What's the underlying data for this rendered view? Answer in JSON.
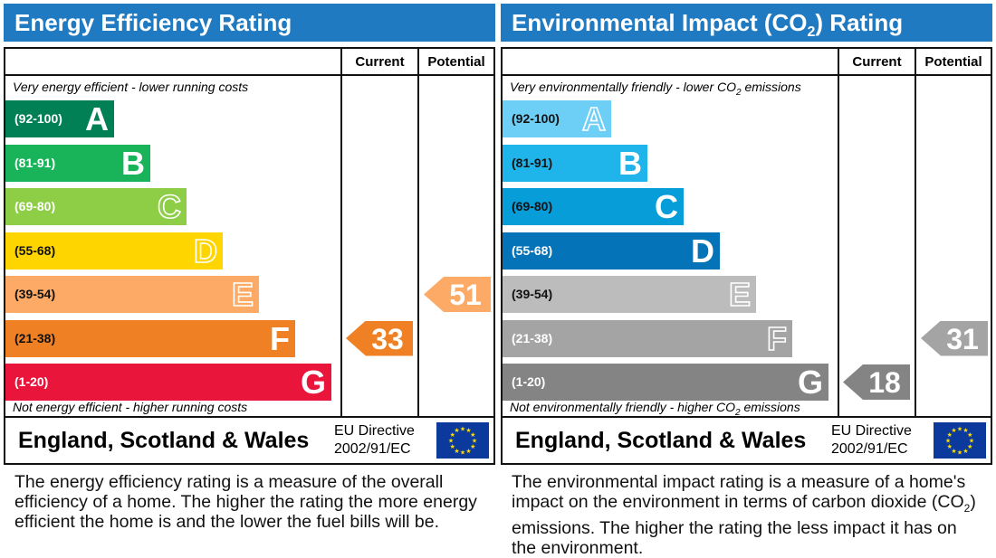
{
  "colors": {
    "header_bg": "#1f7ac1",
    "ee_bands": [
      "#008054",
      "#19b459",
      "#8dce46",
      "#ffd500",
      "#fcaa65",
      "#ef8023",
      "#e9153b"
    ],
    "ei_bands": [
      "#6ecff6",
      "#1fb5ea",
      "#079dd9",
      "#0573b8",
      "#bcbcbc",
      "#a4a4a4",
      "#848484"
    ],
    "ee_current_arrow": "#ef8023",
    "ee_potential_arrow": "#fcaa65",
    "ei_current_arrow": "#848484",
    "ei_potential_arrow": "#a4a4a4"
  },
  "columns": {
    "current": "Current",
    "potential": "Potential"
  },
  "footer": {
    "region": "England, Scotland & Wales",
    "directive_line1": "EU Directive",
    "directive_line2": "2002/91/EC",
    "flag_icon": "eu-flag-icon"
  },
  "energy": {
    "title": "Energy Efficiency Rating",
    "top_note": "Very energy efficient - lower running costs",
    "bottom_note": "Not energy efficient - higher running costs",
    "description": "The energy efficiency rating is a measure of the overall efficiency of a home. The higher the rating the more energy efficient the home is and the lower the fuel bills will be."
  },
  "environment": {
    "title_pre": "Environmental Impact (CO",
    "title_sub": "2",
    "title_post": ") Rating",
    "top_note_pre": "Very environmentally friendly - lower CO",
    "top_note_sub": "2",
    "top_note_post": " emissions",
    "bottom_note_pre": "Not environmentally friendly - higher CO",
    "bottom_note_sub": "2",
    "bottom_note_post": " emissions",
    "description_pre": "The environmental impact rating is a measure of a home's impact on the environment in terms of carbon dioxide (CO",
    "description_sub": "2",
    "description_post": ") emissions. The higher the rating the less impact it has on the environment."
  },
  "chart_data": [
    {
      "type": "bar",
      "title": "Energy Efficiency Rating",
      "categories": [
        "A",
        "B",
        "C",
        "D",
        "E",
        "F",
        "G"
      ],
      "ranges": [
        "(92-100)",
        "(81-91)",
        "(69-80)",
        "(55-68)",
        "(39-54)",
        "(21-38)",
        "(1-20)"
      ],
      "current": 33,
      "potential": 51,
      "current_label": "33",
      "potential_label": "51",
      "current_band": "F",
      "potential_band": "E"
    },
    {
      "type": "bar",
      "title": "Environmental Impact (CO2) Rating",
      "categories": [
        "A",
        "B",
        "C",
        "D",
        "E",
        "F",
        "G"
      ],
      "ranges": [
        "(92-100)",
        "(81-91)",
        "(69-80)",
        "(55-68)",
        "(39-54)",
        "(21-38)",
        "(1-20)"
      ],
      "current": 18,
      "potential": 31,
      "current_label": "18",
      "potential_label": "31",
      "current_band": "G",
      "potential_band": "F"
    }
  ]
}
